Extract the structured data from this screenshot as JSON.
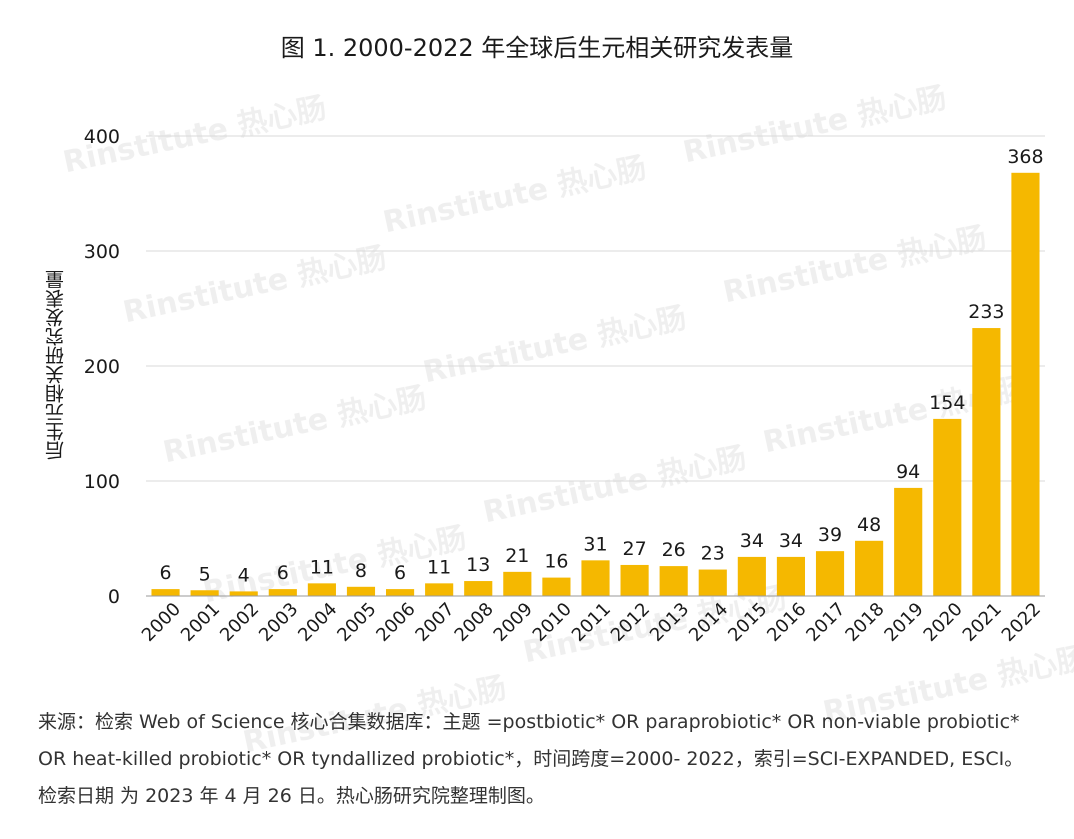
{
  "title": "图 1. 2000-2022 年全球后生元相关研究发表量",
  "watermark": "Rinstitute 热心肠",
  "source_text": "来源：检索 Web of Science 核心合集数据库：主题 =postbiotic* OR paraprobiotic* OR non-viable probiotic* OR heat-killed probiotic* OR tyndallized probiotic*，时间跨度=2000- 2022，索引=SCI-EXPANDED, ESCI。检索日期 为 2023 年 4 月 26 日。热心肠研究院整理制图。",
  "chart_data": {
    "type": "bar",
    "title": "图 1. 2000-2022 年全球后生元相关研究发表量",
    "xlabel": "",
    "ylabel": "后生元相关研究发表量",
    "ylim": [
      0,
      400
    ],
    "yticks": [
      0,
      100,
      200,
      300,
      400
    ],
    "grid": true,
    "bar_color": "#F5B800",
    "categories": [
      "2000",
      "2001",
      "2002",
      "2003",
      "2004",
      "2005",
      "2006",
      "2007",
      "2008",
      "2009",
      "2010",
      "2011",
      "2012",
      "2013",
      "2014",
      "2015",
      "2016",
      "2017",
      "2018",
      "2019",
      "2020",
      "2021",
      "2022"
    ],
    "values": [
      6,
      5,
      4,
      6,
      11,
      8,
      6,
      11,
      13,
      21,
      16,
      31,
      27,
      26,
      23,
      34,
      34,
      39,
      48,
      94,
      154,
      233,
      368
    ]
  }
}
